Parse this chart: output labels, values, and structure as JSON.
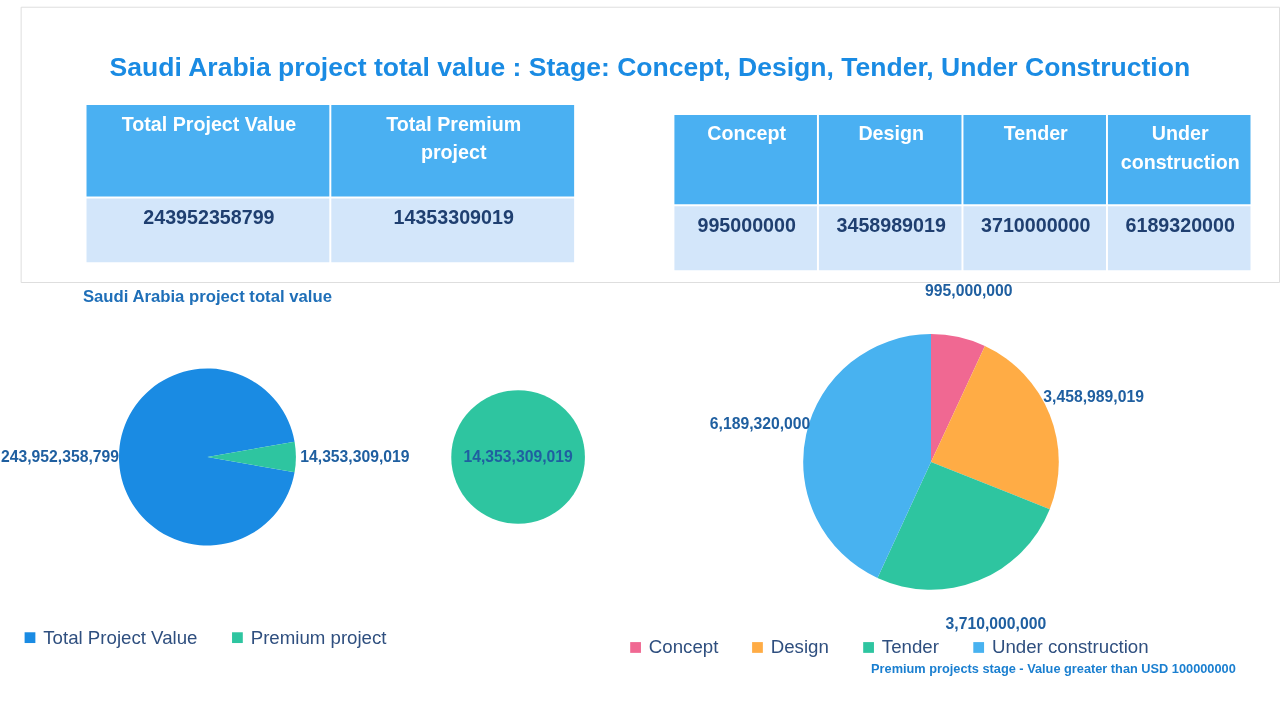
{
  "chart_data": [
    {
      "type": "other",
      "title": "Saudi Arabia project total value : Stage: Concept, Design, Tender, Under Construction",
      "annotations": [
        "Total Project Value",
        "Total Premium project",
        "243952358799",
        "14353309019",
        "Concept",
        "Design",
        "Tender",
        "Under construction",
        "995000000",
        "3458989019",
        "3710000000",
        "6189320000"
      ]
    },
    {
      "type": "pie",
      "title": "Saudi Arabia project total value",
      "categories": [
        "Total Project Value",
        "Premium project"
      ],
      "values": [
        243952358799,
        14353309019
      ],
      "colors": [
        "#1a8be3",
        "#2ec5a0"
      ],
      "value_labels": [
        "243,952,358,799",
        "14,353,309,019"
      ],
      "legend": "bottom"
    },
    {
      "type": "pie",
      "categories": [
        null
      ],
      "values": [
        14353309019
      ],
      "colors": [
        "#2ec5a0"
      ],
      "value_labels": [
        "14,353,309,019"
      ]
    },
    {
      "type": "pie",
      "categories": [
        "Concept",
        "Design",
        "Tender",
        "Under construction"
      ],
      "values": [
        995000000,
        3458989019,
        3710000000,
        6189320000
      ],
      "colors": [
        "#f06892",
        "#ffac45",
        "#2ec5a0",
        "#48b2f0"
      ],
      "value_labels": [
        "995,000,000",
        "3,458,989,019",
        "3,710,000,000",
        "6,189,320,000"
      ],
      "legend": "bottom",
      "annotations": [
        "Premium projects stage -  Value greater than USD 100000000"
      ]
    }
  ]
}
